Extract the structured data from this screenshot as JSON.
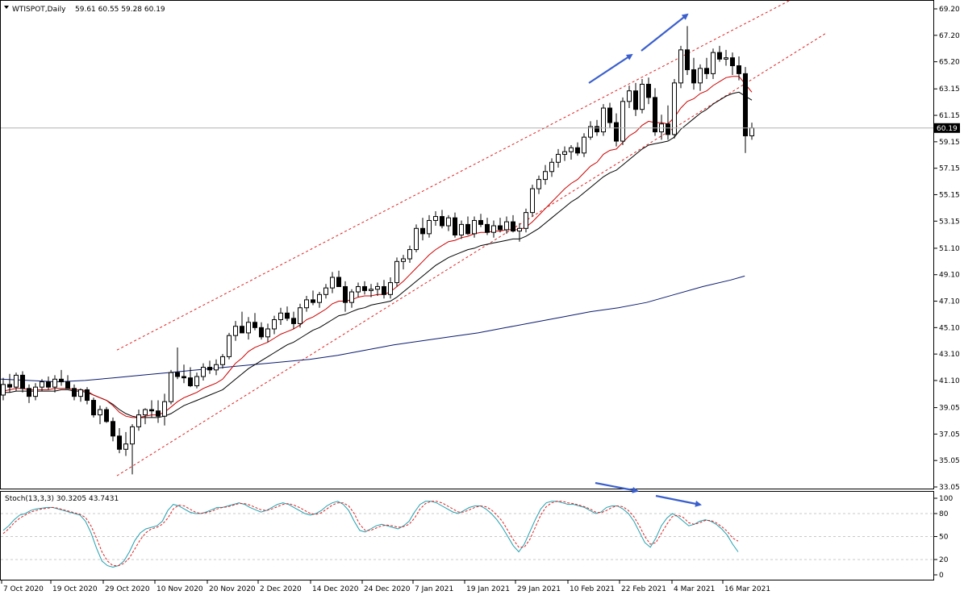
{
  "header": {
    "symbol": "WTISPOT,Daily",
    "ohlc": "59.61 60.55 59.28 60.19"
  },
  "price_panel": {
    "y_ticks": [
      "69.20",
      "67.20",
      "65.20",
      "63.15",
      "61.15",
      "59.15",
      "57.15",
      "55.15",
      "53.15",
      "51.10",
      "49.10",
      "47.10",
      "45.10",
      "43.10",
      "41.10",
      "39.05",
      "37.05",
      "35.05",
      "33.05"
    ],
    "current_price_label": "60.19",
    "colors": {
      "bull_body": "#ffffff",
      "bear_body": "#000000",
      "candle_outline": "#000000",
      "ema_fast": "#cc0000",
      "ema_slow": "#000000",
      "ma_long": "#0a1a6e",
      "channel": "#e02020",
      "arrow": "#3a5fcd",
      "price_line": "#b0b0b0"
    }
  },
  "stoch_panel": {
    "label": "Stoch(13,3,3) 30.3205 43.7431",
    "y_ticks": [
      "100",
      "80",
      "50",
      "20",
      "0"
    ],
    "colors": {
      "main": "#20a0b0",
      "signal": "#e02020"
    }
  },
  "x_axis": {
    "labels": [
      "7 Oct 2020",
      "19 Oct 2020",
      "29 Oct 2020",
      "10 Nov 2020",
      "20 Nov 2020",
      "2 Dec 2020",
      "14 Dec 2020",
      "24 Dec 2020",
      "7 Jan 2021",
      "19 Jan 2021",
      "29 Jan 2021",
      "10 Feb 2021",
      "22 Feb 2021",
      "4 Mar 2021",
      "16 Mar 2021"
    ]
  },
  "chart_data": {
    "type": "candlestick",
    "title": "WTISPOT,Daily",
    "ylim": [
      33.05,
      69.2
    ],
    "ohlc": [
      [
        40.0,
        41.3,
        39.6,
        40.8
      ],
      [
        40.8,
        41.6,
        40.2,
        40.6
      ],
      [
        40.6,
        41.7,
        40.3,
        41.5
      ],
      [
        41.5,
        41.8,
        40.2,
        40.5
      ],
      [
        40.5,
        40.8,
        39.4,
        39.9
      ],
      [
        39.9,
        40.9,
        39.6,
        40.6
      ],
      [
        40.6,
        41.2,
        40.3,
        41.0
      ],
      [
        41.0,
        41.4,
        40.4,
        40.6
      ],
      [
        40.6,
        41.5,
        40.2,
        41.2
      ],
      [
        41.2,
        41.9,
        40.7,
        41.0
      ],
      [
        41.0,
        41.5,
        40.6,
        40.5
      ],
      [
        40.5,
        40.8,
        39.6,
        39.9
      ],
      [
        39.9,
        40.5,
        39.5,
        40.4
      ],
      [
        40.4,
        40.6,
        39.3,
        39.6
      ],
      [
        39.6,
        39.8,
        38.3,
        38.5
      ],
      [
        38.5,
        39.2,
        37.8,
        38.9
      ],
      [
        38.9,
        39.1,
        37.9,
        38.0
      ],
      [
        38.0,
        38.3,
        36.5,
        36.9
      ],
      [
        36.9,
        37.5,
        35.6,
        35.9
      ],
      [
        35.9,
        37.2,
        35.4,
        36.3
      ],
      [
        36.3,
        37.8,
        34.0,
        37.6
      ],
      [
        37.6,
        38.9,
        37.3,
        38.5
      ],
      [
        38.5,
        39.0,
        37.8,
        38.9
      ],
      [
        38.9,
        39.6,
        38.3,
        38.8
      ],
      [
        38.8,
        39.6,
        37.9,
        38.4
      ],
      [
        38.4,
        40.1,
        37.7,
        39.5
      ],
      [
        39.5,
        41.9,
        39.3,
        41.7
      ],
      [
        41.7,
        43.6,
        41.2,
        41.4
      ],
      [
        41.4,
        42.3,
        40.9,
        41.3
      ],
      [
        41.3,
        42.1,
        40.6,
        40.7
      ],
      [
        40.7,
        41.7,
        40.5,
        41.4
      ],
      [
        41.4,
        42.4,
        41.1,
        42.1
      ],
      [
        42.1,
        42.6,
        41.6,
        41.9
      ],
      [
        41.9,
        42.7,
        41.5,
        42.3
      ],
      [
        42.3,
        43.1,
        42.0,
        42.9
      ],
      [
        42.9,
        44.7,
        42.7,
        44.5
      ],
      [
        44.5,
        45.6,
        44.1,
        45.2
      ],
      [
        45.2,
        46.3,
        44.8,
        44.7
      ],
      [
        44.7,
        45.9,
        44.2,
        45.5
      ],
      [
        45.5,
        46.2,
        44.9,
        45.1
      ],
      [
        45.1,
        45.5,
        44.2,
        44.4
      ],
      [
        44.4,
        45.4,
        44.0,
        45.0
      ],
      [
        45.0,
        46.0,
        44.6,
        45.7
      ],
      [
        45.7,
        46.6,
        45.3,
        46.2
      ],
      [
        46.2,
        46.7,
        45.6,
        45.8
      ],
      [
        45.8,
        46.3,
        45.0,
        45.4
      ],
      [
        45.4,
        46.9,
        45.1,
        46.6
      ],
      [
        46.6,
        47.5,
        46.3,
        47.2
      ],
      [
        47.2,
        47.9,
        46.8,
        47.0
      ],
      [
        47.0,
        47.8,
        46.6,
        47.6
      ],
      [
        47.6,
        48.4,
        47.3,
        48.1
      ],
      [
        48.1,
        49.3,
        47.7,
        48.9
      ],
      [
        48.9,
        49.4,
        48.4,
        48.2
      ],
      [
        48.2,
        48.6,
        46.3,
        47.0
      ],
      [
        47.0,
        48.0,
        46.6,
        47.8
      ],
      [
        47.8,
        48.5,
        47.4,
        48.2
      ],
      [
        48.2,
        48.6,
        47.6,
        47.9
      ],
      [
        47.9,
        48.4,
        47.4,
        48.0
      ],
      [
        48.0,
        48.5,
        47.5,
        48.2
      ],
      [
        48.2,
        48.7,
        47.3,
        47.6
      ],
      [
        47.6,
        48.9,
        47.3,
        48.5
      ],
      [
        48.5,
        50.4,
        48.2,
        50.1
      ],
      [
        50.1,
        50.6,
        49.5,
        50.3
      ],
      [
        50.3,
        51.3,
        50.0,
        51.0
      ],
      [
        51.0,
        52.9,
        50.8,
        52.6
      ],
      [
        52.6,
        53.4,
        51.7,
        52.2
      ],
      [
        52.2,
        53.6,
        51.9,
        53.2
      ],
      [
        53.2,
        53.9,
        52.8,
        53.5
      ],
      [
        53.5,
        54.0,
        52.6,
        52.8
      ],
      [
        52.8,
        53.6,
        52.4,
        53.4
      ],
      [
        53.4,
        53.8,
        51.9,
        52.1
      ],
      [
        52.1,
        53.2,
        51.8,
        52.9
      ],
      [
        52.9,
        53.5,
        52.1,
        52.2
      ],
      [
        52.2,
        53.5,
        51.9,
        53.2
      ],
      [
        53.2,
        53.7,
        52.7,
        52.9
      ],
      [
        52.9,
        53.4,
        52.1,
        52.3
      ],
      [
        52.3,
        53.2,
        51.9,
        52.8
      ],
      [
        52.8,
        53.4,
        52.3,
        52.5
      ],
      [
        52.5,
        53.5,
        52.2,
        53.1
      ],
      [
        53.1,
        53.6,
        52.3,
        52.4
      ],
      [
        52.4,
        53.0,
        51.6,
        52.6
      ],
      [
        52.6,
        54.1,
        52.3,
        53.8
      ],
      [
        53.8,
        55.9,
        53.5,
        55.6
      ],
      [
        55.6,
        56.6,
        55.2,
        56.3
      ],
      [
        56.3,
        57.4,
        55.9,
        56.9
      ],
      [
        56.9,
        57.9,
        56.5,
        57.6
      ],
      [
        57.6,
        58.6,
        57.2,
        58.2
      ],
      [
        58.2,
        58.8,
        57.7,
        58.4
      ],
      [
        58.4,
        58.9,
        57.8,
        58.7
      ],
      [
        58.7,
        59.1,
        58.1,
        58.3
      ],
      [
        58.3,
        59.8,
        58.0,
        59.5
      ],
      [
        59.5,
        60.7,
        59.3,
        60.3
      ],
      [
        60.3,
        60.8,
        59.6,
        59.9
      ],
      [
        59.9,
        62.0,
        59.6,
        61.7
      ],
      [
        61.7,
        62.1,
        60.2,
        60.6
      ],
      [
        60.6,
        61.3,
        58.8,
        59.2
      ],
      [
        59.2,
        62.5,
        58.9,
        62.2
      ],
      [
        62.2,
        63.4,
        61.7,
        63.0
      ],
      [
        63.0,
        63.6,
        61.1,
        61.6
      ],
      [
        61.6,
        63.9,
        61.3,
        63.5
      ],
      [
        63.5,
        64.0,
        62.0,
        62.5
      ],
      [
        62.5,
        63.2,
        59.6,
        59.9
      ],
      [
        59.9,
        61.2,
        59.3,
        60.5
      ],
      [
        60.5,
        61.9,
        59.3,
        59.7
      ],
      [
        59.7,
        63.9,
        59.4,
        63.6
      ],
      [
        63.6,
        66.4,
        63.2,
        66.1
      ],
      [
        66.1,
        67.9,
        64.2,
        64.6
      ],
      [
        64.6,
        65.5,
        63.1,
        63.6
      ],
      [
        63.6,
        65.0,
        63.0,
        64.7
      ],
      [
        64.7,
        65.5,
        63.9,
        64.3
      ],
      [
        64.3,
        66.2,
        63.9,
        65.9
      ],
      [
        65.9,
        66.4,
        65.2,
        65.4
      ],
      [
        65.4,
        66.1,
        64.9,
        65.5
      ],
      [
        65.5,
        65.9,
        64.2,
        64.9
      ],
      [
        64.9,
        65.6,
        63.8,
        64.3
      ],
      [
        64.3,
        64.8,
        58.3,
        59.6
      ],
      [
        59.6,
        60.6,
        59.3,
        60.2
      ]
    ],
    "ema_fast_red": [
      40.3,
      40.4,
      40.5,
      40.5,
      40.4,
      40.4,
      40.4,
      40.4,
      40.5,
      40.5,
      40.5,
      40.4,
      40.4,
      40.3,
      40.0,
      39.8,
      39.6,
      39.2,
      38.7,
      38.4,
      38.3,
      38.3,
      38.4,
      38.5,
      38.5,
      38.7,
      39.1,
      39.5,
      39.8,
      40.0,
      40.2,
      40.5,
      40.7,
      40.9,
      41.2,
      41.8,
      42.4,
      42.8,
      43.3,
      43.6,
      43.8,
      44.0,
      44.3,
      44.6,
      44.8,
      45.0,
      45.3,
      45.7,
      45.9,
      46.2,
      46.5,
      46.9,
      47.1,
      47.1,
      47.2,
      47.4,
      47.5,
      47.5,
      47.6,
      47.6,
      47.8,
      48.2,
      48.6,
      49.1,
      49.6,
      50.1,
      50.6,
      51.0,
      51.3,
      51.6,
      51.7,
      51.9,
      52.0,
      52.2,
      52.3,
      52.3,
      52.4,
      52.4,
      52.5,
      52.5,
      52.5,
      52.7,
      53.1,
      53.6,
      54.1,
      54.6,
      55.1,
      55.6,
      56.0,
      56.3,
      56.8,
      57.3,
      57.6,
      58.2,
      58.5,
      58.6,
      59.1,
      59.6,
      59.9,
      60.4,
      60.7,
      60.6,
      60.6,
      60.5,
      61.0,
      61.7,
      62.2,
      62.4,
      62.8,
      63.0,
      63.4,
      63.7,
      64.0,
      64.1,
      64.1,
      63.5,
      62.9
    ],
    "ema_slow_black": [
      40.2,
      40.2,
      40.3,
      40.3,
      40.3,
      40.3,
      40.3,
      40.3,
      40.3,
      40.4,
      40.4,
      40.3,
      40.3,
      40.2,
      40.0,
      39.8,
      39.6,
      39.3,
      38.9,
      38.6,
      38.4,
      38.3,
      38.3,
      38.3,
      38.3,
      38.4,
      38.6,
      38.9,
      39.2,
      39.4,
      39.6,
      39.8,
      40.0,
      40.2,
      40.4,
      40.8,
      41.2,
      41.6,
      42.0,
      42.3,
      42.6,
      42.9,
      43.2,
      43.5,
      43.8,
      44.0,
      44.3,
      44.6,
      44.9,
      45.1,
      45.4,
      45.7,
      46.0,
      46.1,
      46.3,
      46.5,
      46.6,
      46.8,
      46.9,
      47.0,
      47.1,
      47.4,
      47.8,
      48.2,
      48.6,
      49.0,
      49.4,
      49.8,
      50.1,
      50.4,
      50.6,
      50.8,
      51.0,
      51.1,
      51.3,
      51.4,
      51.5,
      51.6,
      51.7,
      51.8,
      51.8,
      52.0,
      52.3,
      52.6,
      53.0,
      53.4,
      53.8,
      54.2,
      54.6,
      54.9,
      55.3,
      55.7,
      56.1,
      56.5,
      56.8,
      57.0,
      57.4,
      57.8,
      58.2,
      58.6,
      58.9,
      59.0,
      59.1,
      59.2,
      59.5,
      60.1,
      60.5,
      60.9,
      61.3,
      61.6,
      62.0,
      62.3,
      62.6,
      62.8,
      62.9,
      62.6,
      62.3
    ],
    "ma_long_navy": [
      [
        0,
        41.2
      ],
      [
        20,
        41.1
      ],
      [
        40,
        41.0
      ],
      [
        60,
        41.1
      ],
      [
        80,
        41.3
      ],
      [
        100,
        41.5
      ],
      [
        120,
        41.7
      ],
      [
        140,
        41.9
      ],
      [
        160,
        42.1
      ],
      [
        180,
        42.3
      ],
      [
        200,
        42.5
      ],
      [
        220,
        42.7
      ],
      [
        240,
        43.0
      ],
      [
        260,
        43.4
      ],
      [
        280,
        43.8
      ],
      [
        300,
        44.1
      ],
      [
        320,
        44.4
      ],
      [
        340,
        44.7
      ],
      [
        360,
        45.1
      ],
      [
        380,
        45.5
      ],
      [
        400,
        45.9
      ],
      [
        420,
        46.3
      ],
      [
        440,
        46.6
      ],
      [
        460,
        47.0
      ],
      [
        480,
        47.6
      ],
      [
        500,
        48.2
      ],
      [
        520,
        48.7
      ],
      [
        530,
        49.0
      ]
    ],
    "channel_upper": [
      [
        0,
        43.4
      ],
      [
        110,
        71.3
      ]
    ],
    "channel_lower": [
      [
        0,
        33.9
      ],
      [
        110,
        67.4
      ]
    ],
    "stoch_main": [
      58,
      64,
      72,
      78,
      80,
      84,
      86,
      87,
      88,
      88,
      86,
      84,
      82,
      80,
      78,
      70,
      55,
      35,
      18,
      12,
      10,
      12,
      18,
      30,
      45,
      55,
      60,
      62,
      64,
      70,
      84,
      92,
      90,
      86,
      82,
      80,
      80,
      82,
      85,
      88,
      88,
      90,
      92,
      94,
      92,
      88,
      85,
      82,
      84,
      88,
      92,
      94,
      92,
      88,
      84,
      80,
      78,
      80,
      84,
      90,
      94,
      96,
      92,
      84,
      70,
      58,
      56,
      60,
      64,
      66,
      64,
      62,
      60,
      64,
      70,
      82,
      92,
      96,
      96,
      94,
      90,
      86,
      82,
      80,
      84,
      88,
      90,
      90,
      86,
      80,
      72,
      62,
      50,
      38,
      30,
      40,
      56,
      72,
      86,
      94,
      96,
      96,
      94,
      92,
      92,
      90,
      88,
      84,
      80,
      82,
      88,
      90,
      90,
      86,
      80,
      70,
      56,
      42,
      36,
      48,
      64,
      74,
      80,
      76,
      70,
      64,
      66,
      70,
      72,
      70,
      66,
      60,
      52,
      40,
      30
    ],
    "stoch_signal": [
      54,
      60,
      68,
      74,
      78,
      82,
      84,
      86,
      87,
      88,
      87,
      85,
      83,
      81,
      79,
      75,
      64,
      48,
      30,
      18,
      12,
      12,
      15,
      22,
      34,
      46,
      55,
      60,
      62,
      66,
      74,
      86,
      91,
      90,
      86,
      82,
      80,
      81,
      83,
      86,
      88,
      89,
      91,
      93,
      93,
      91,
      88,
      85,
      84,
      86,
      89,
      92,
      93,
      91,
      88,
      84,
      80,
      79,
      81,
      86,
      91,
      94,
      94,
      90,
      80,
      66,
      58,
      58,
      61,
      64,
      65,
      64,
      62,
      63,
      66,
      74,
      86,
      93,
      96,
      96,
      94,
      90,
      86,
      82,
      82,
      85,
      88,
      90,
      89,
      85,
      78,
      70,
      58,
      46,
      36,
      36,
      46,
      62,
      78,
      89,
      94,
      96,
      96,
      94,
      93,
      91,
      89,
      86,
      82,
      81,
      84,
      88,
      90,
      89,
      84,
      76,
      64,
      50,
      40,
      42,
      54,
      66,
      76,
      78,
      75,
      68,
      66,
      68,
      71,
      71,
      68,
      63,
      57,
      48,
      44
    ]
  }
}
